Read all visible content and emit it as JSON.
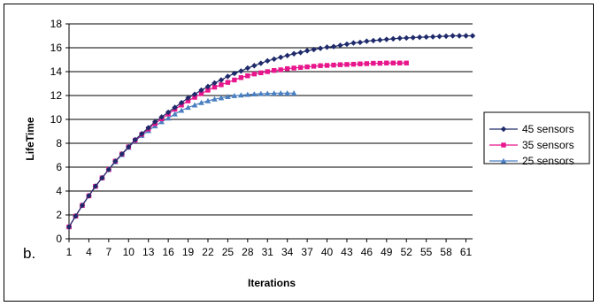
{
  "chart_data": {
    "type": "line",
    "panel_label": "b.",
    "xlabel": "Iterations",
    "ylabel": "LifeTime",
    "ylim": [
      0,
      18
    ],
    "yticks": [
      0,
      2,
      4,
      6,
      8,
      10,
      12,
      14,
      16,
      18
    ],
    "xticks": [
      1,
      4,
      7,
      10,
      13,
      16,
      19,
      22,
      25,
      28,
      31,
      34,
      37,
      40,
      43,
      46,
      49,
      52,
      55,
      58,
      61
    ],
    "xlim": [
      1,
      62
    ],
    "grid": "horizontal",
    "legend_position": "right",
    "series": [
      {
        "name": "45 sensors",
        "color": "#1f2a6b",
        "marker": "diamond",
        "x": [
          1,
          2,
          3,
          4,
          5,
          6,
          7,
          8,
          9,
          10,
          11,
          12,
          13,
          14,
          15,
          16,
          17,
          18,
          19,
          20,
          21,
          22,
          23,
          24,
          25,
          26,
          27,
          28,
          29,
          30,
          31,
          32,
          33,
          34,
          35,
          36,
          37,
          38,
          39,
          40,
          41,
          42,
          43,
          44,
          45,
          46,
          47,
          48,
          49,
          50,
          51,
          52,
          53,
          54,
          55,
          56,
          57,
          58,
          59,
          60,
          61,
          62
        ],
        "values": [
          1.0,
          1.9,
          2.8,
          3.6,
          4.4,
          5.1,
          5.8,
          6.5,
          7.1,
          7.7,
          8.3,
          8.8,
          9.3,
          9.8,
          10.2,
          10.6,
          11.0,
          11.4,
          11.8,
          12.1,
          12.45,
          12.75,
          13.05,
          13.3,
          13.6,
          13.85,
          14.05,
          14.3,
          14.5,
          14.7,
          14.9,
          15.05,
          15.2,
          15.35,
          15.5,
          15.6,
          15.75,
          15.85,
          15.95,
          16.05,
          16.1,
          16.2,
          16.3,
          16.4,
          16.45,
          16.55,
          16.6,
          16.65,
          16.7,
          16.75,
          16.8,
          16.82,
          16.85,
          16.88,
          16.9,
          16.92,
          16.95,
          16.97,
          17.0,
          17.0,
          17.0,
          17.0
        ]
      },
      {
        "name": "35 sensors",
        "color": "#e8168c",
        "marker": "square",
        "x": [
          1,
          2,
          3,
          4,
          5,
          6,
          7,
          8,
          9,
          10,
          11,
          12,
          13,
          14,
          15,
          16,
          17,
          18,
          19,
          20,
          21,
          22,
          23,
          24,
          25,
          26,
          27,
          28,
          29,
          30,
          31,
          32,
          33,
          34,
          35,
          36,
          37,
          38,
          39,
          40,
          41,
          42,
          43,
          44,
          45,
          46,
          47,
          48,
          49,
          50,
          51,
          52
        ],
        "values": [
          1.0,
          1.9,
          2.8,
          3.6,
          4.4,
          5.1,
          5.8,
          6.5,
          7.1,
          7.7,
          8.25,
          8.75,
          9.2,
          9.65,
          10.05,
          10.45,
          10.85,
          11.2,
          11.55,
          11.85,
          12.15,
          12.45,
          12.7,
          12.9,
          13.1,
          13.3,
          13.5,
          13.65,
          13.8,
          13.9,
          14.0,
          14.1,
          14.15,
          14.25,
          14.3,
          14.35,
          14.4,
          14.45,
          14.5,
          14.52,
          14.55,
          14.58,
          14.6,
          14.62,
          14.65,
          14.67,
          14.7,
          14.7,
          14.72,
          14.72,
          14.72,
          14.72
        ]
      },
      {
        "name": "25 sensors",
        "color": "#4a7fc1",
        "marker": "triangle",
        "x": [
          1,
          2,
          3,
          4,
          5,
          6,
          7,
          8,
          9,
          10,
          11,
          12,
          13,
          14,
          15,
          16,
          17,
          18,
          19,
          20,
          21,
          22,
          23,
          24,
          25,
          26,
          27,
          28,
          29,
          30,
          31,
          32,
          33,
          34,
          35
        ],
        "values": [
          1.0,
          1.9,
          2.8,
          3.6,
          4.4,
          5.1,
          5.8,
          6.45,
          7.05,
          7.65,
          8.2,
          8.65,
          9.05,
          9.45,
          9.8,
          10.1,
          10.45,
          10.75,
          11.0,
          11.2,
          11.4,
          11.55,
          11.7,
          11.8,
          11.9,
          11.98,
          12.03,
          12.08,
          12.12,
          12.15,
          12.17,
          12.19,
          12.2,
          12.2,
          12.2
        ]
      }
    ]
  }
}
